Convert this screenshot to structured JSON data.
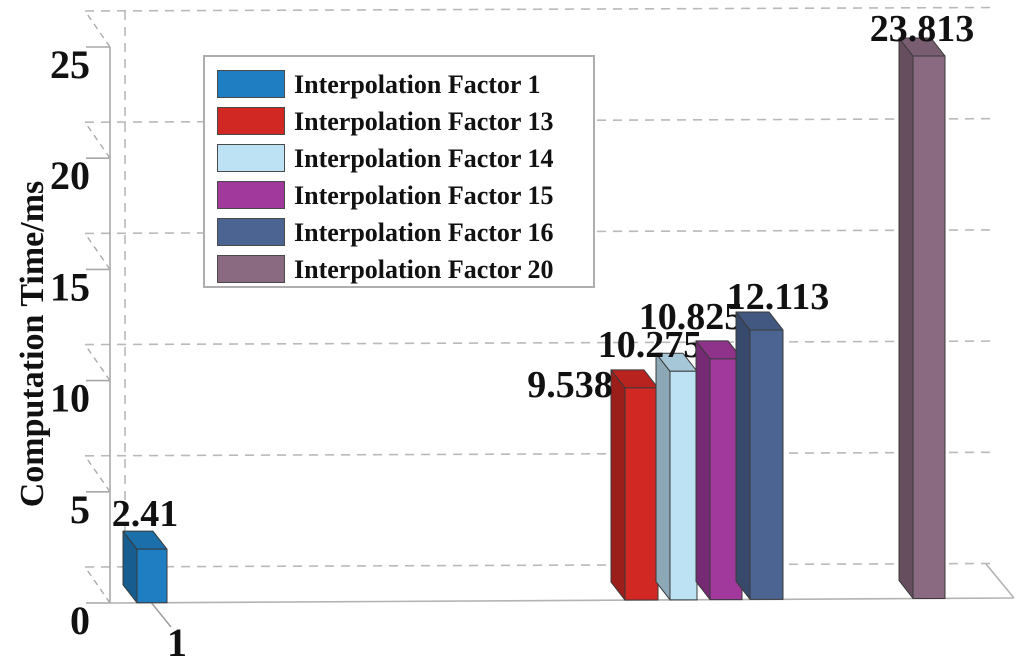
{
  "chart_data": {
    "type": "bar",
    "style": "3d-bar",
    "title": "",
    "xlabel": "",
    "ylabel": "Computation Time/ms",
    "ylim": [
      0,
      25
    ],
    "ytick_labels": [
      "0",
      "5",
      "10",
      "15",
      "20",
      "25"
    ],
    "yticks": [
      0,
      5,
      10,
      15,
      20,
      25
    ],
    "xtick_labels": [
      "1"
    ],
    "grid": true,
    "legend_position": "top-left",
    "series": [
      {
        "name": "Interpolation Factor 1",
        "value": 2.41,
        "label": "2.41",
        "color": "#1f7ec1"
      },
      {
        "name": "Interpolation Factor 13",
        "value": 9.538,
        "label": "9.538",
        "color": "#d22823"
      },
      {
        "name": "Interpolation Factor 14",
        "value": 10.275,
        "label": "10.275",
        "color": "#bde2f4"
      },
      {
        "name": "Interpolation Factor 15",
        "value": 10.825,
        "label": "10.825",
        "color": "#a1399d"
      },
      {
        "name": "Interpolation Factor 16",
        "value": 12.113,
        "label": "12.113",
        "color": "#4c6492"
      },
      {
        "name": "Interpolation Factor 20",
        "value": 23.813,
        "label": "23.813",
        "color": "#8a6a80"
      }
    ]
  }
}
